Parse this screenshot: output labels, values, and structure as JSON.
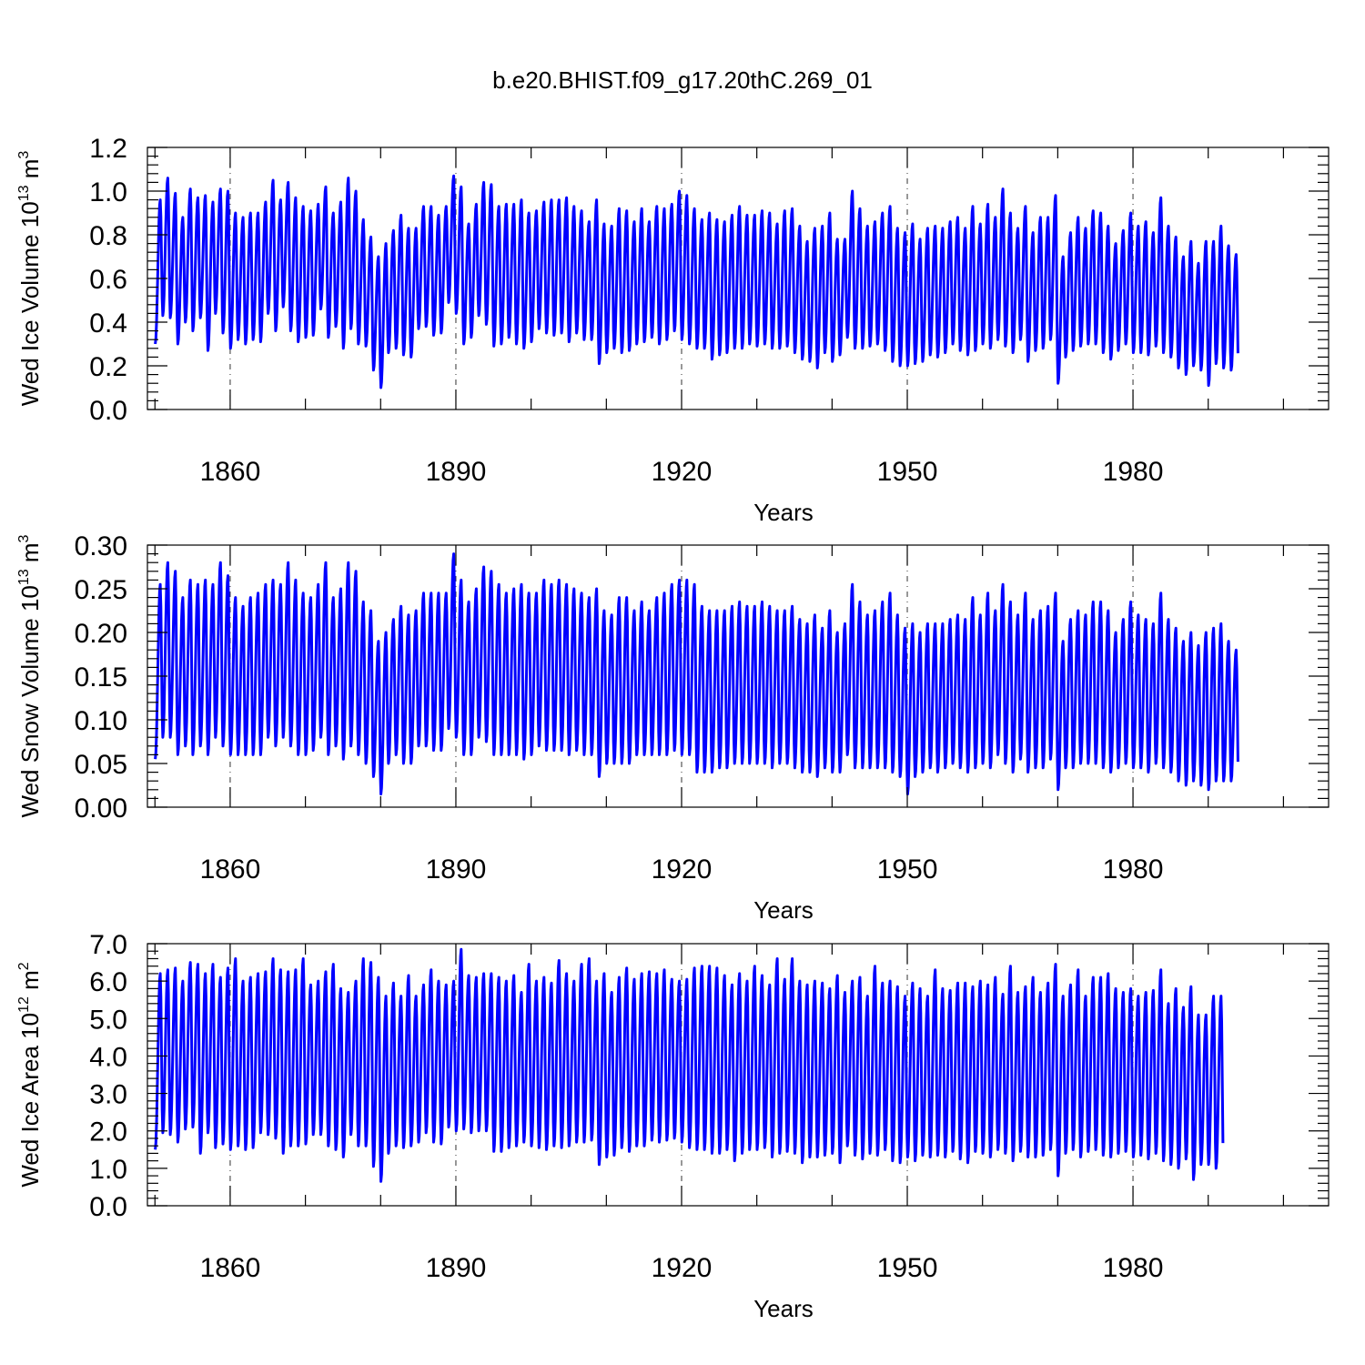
{
  "title": "b.e20.BHIST.f09_g17.20thC.269_01",
  "colors": {
    "series": "#0000ff",
    "axes": "#000000",
    "background": "#ffffff"
  },
  "chart_data": [
    {
      "type": "line",
      "ylabel": "Wed Ice Volume 10",
      "ylabel_sup": "13",
      "ylabel_unit": " m",
      "ylabel_unit_sup": "3",
      "xlabel": "Years",
      "xlim": [
        1849,
        2006
      ],
      "ylim": [
        0,
        1.2
      ],
      "x_ticks": [
        1860,
        1890,
        1920,
        1950,
        1980
      ],
      "y_ticks": [
        "0.0",
        "0.2",
        "0.4",
        "0.6",
        "0.8",
        "1.0",
        "1.2"
      ],
      "grid": "vertical dashed at major x ticks",
      "series": [
        {
          "start_year": 1850,
          "annual_max": [
            0.96,
            1.06,
            0.99,
            0.88,
            1.01,
            0.97,
            0.98,
            0.95,
            1.01,
            1.0,
            0.9,
            0.88,
            0.9,
            0.9,
            0.95,
            1.05,
            0.96,
            1.04,
            0.97,
            0.93,
            0.91,
            0.94,
            1.02,
            0.9,
            0.95,
            1.06,
            1.0,
            0.87,
            0.79,
            0.7,
            0.76,
            0.82,
            0.89,
            0.83,
            0.83,
            0.93,
            0.93,
            0.89,
            0.93,
            1.07,
            1.02,
            0.85,
            0.94,
            1.04,
            1.03,
            0.93,
            0.94,
            0.94,
            0.96,
            0.9,
            0.91,
            0.95,
            0.96,
            0.96,
            0.97,
            0.93,
            0.91,
            0.86,
            0.96,
            0.85,
            0.84,
            0.92,
            0.91,
            0.86,
            0.92,
            0.86,
            0.93,
            0.92,
            0.94,
            1.0,
            0.98,
            0.92,
            0.87,
            0.9,
            0.87,
            0.86,
            0.89,
            0.93,
            0.89,
            0.89,
            0.91,
            0.9,
            0.85,
            0.91,
            0.92,
            0.84,
            0.77,
            0.83,
            0.84,
            0.9,
            0.78,
            0.78,
            1.0,
            0.92,
            0.84,
            0.86,
            0.9,
            0.93,
            0.83,
            0.81,
            0.85,
            0.78,
            0.83,
            0.84,
            0.83,
            0.86,
            0.88,
            0.83,
            0.93,
            0.85,
            0.94,
            0.88,
            1.01,
            0.9,
            0.83,
            0.93,
            0.81,
            0.88,
            0.88,
            0.98,
            0.7,
            0.81,
            0.88,
            0.83,
            0.91,
            0.9,
            0.84,
            0.76,
            0.82,
            0.9,
            0.84,
            0.86,
            0.81,
            0.97,
            0.84,
            0.79,
            0.7,
            0.77,
            0.67,
            0.77,
            0.77,
            0.84,
            0.75,
            0.71
          ],
          "annual_min": [
            0.3,
            0.43,
            0.42,
            0.3,
            0.4,
            0.36,
            0.42,
            0.27,
            0.44,
            0.35,
            0.28,
            0.32,
            0.3,
            0.32,
            0.31,
            0.44,
            0.36,
            0.47,
            0.36,
            0.31,
            0.33,
            0.34,
            0.46,
            0.33,
            0.38,
            0.28,
            0.37,
            0.3,
            0.29,
            0.18,
            0.1,
            0.26,
            0.28,
            0.25,
            0.24,
            0.37,
            0.38,
            0.34,
            0.35,
            0.49,
            0.44,
            0.3,
            0.33,
            0.43,
            0.39,
            0.29,
            0.3,
            0.33,
            0.3,
            0.28,
            0.31,
            0.37,
            0.35,
            0.34,
            0.35,
            0.31,
            0.35,
            0.32,
            0.32,
            0.21,
            0.26,
            0.28,
            0.26,
            0.27,
            0.3,
            0.31,
            0.33,
            0.3,
            0.32,
            0.36,
            0.32,
            0.3,
            0.28,
            0.28,
            0.23,
            0.25,
            0.26,
            0.28,
            0.28,
            0.3,
            0.29,
            0.3,
            0.28,
            0.28,
            0.29,
            0.26,
            0.23,
            0.22,
            0.19,
            0.26,
            0.22,
            0.25,
            0.33,
            0.28,
            0.28,
            0.29,
            0.3,
            0.27,
            0.22,
            0.2,
            0.2,
            0.21,
            0.22,
            0.25,
            0.24,
            0.26,
            0.3,
            0.27,
            0.25,
            0.27,
            0.3,
            0.28,
            0.32,
            0.29,
            0.26,
            0.32,
            0.22,
            0.27,
            0.28,
            0.32,
            0.12,
            0.24,
            0.27,
            0.29,
            0.3,
            0.3,
            0.26,
            0.23,
            0.27,
            0.3,
            0.26,
            0.26,
            0.25,
            0.29,
            0.26,
            0.24,
            0.19,
            0.16,
            0.2,
            0.18,
            0.11,
            0.21,
            0.19,
            0.18
          ]
        }
      ]
    },
    {
      "type": "line",
      "ylabel": "Wed Snow Volume 10",
      "ylabel_sup": "13",
      "ylabel_unit": " m",
      "ylabel_unit_sup": "3",
      "xlabel": "Years",
      "xlim": [
        1849,
        2006
      ],
      "ylim": [
        0,
        0.3
      ],
      "x_ticks": [
        1860,
        1890,
        1920,
        1950,
        1980
      ],
      "y_ticks": [
        "0.00",
        "0.05",
        "0.10",
        "0.15",
        "0.20",
        "0.25",
        "0.30"
      ],
      "grid": "vertical dashed at major x ticks",
      "series": [
        {
          "start_year": 1850,
          "annual_max": [
            0.255,
            0.28,
            0.27,
            0.24,
            0.26,
            0.255,
            0.26,
            0.255,
            0.28,
            0.265,
            0.24,
            0.23,
            0.24,
            0.245,
            0.255,
            0.26,
            0.255,
            0.28,
            0.26,
            0.245,
            0.24,
            0.255,
            0.28,
            0.24,
            0.25,
            0.28,
            0.27,
            0.235,
            0.225,
            0.19,
            0.2,
            0.215,
            0.23,
            0.22,
            0.225,
            0.245,
            0.245,
            0.245,
            0.245,
            0.29,
            0.26,
            0.235,
            0.25,
            0.275,
            0.27,
            0.255,
            0.245,
            0.25,
            0.255,
            0.245,
            0.245,
            0.26,
            0.255,
            0.26,
            0.255,
            0.25,
            0.245,
            0.24,
            0.25,
            0.225,
            0.22,
            0.24,
            0.24,
            0.225,
            0.235,
            0.225,
            0.24,
            0.245,
            0.255,
            0.26,
            0.26,
            0.255,
            0.23,
            0.225,
            0.225,
            0.225,
            0.23,
            0.235,
            0.23,
            0.23,
            0.235,
            0.23,
            0.225,
            0.225,
            0.23,
            0.215,
            0.21,
            0.22,
            0.205,
            0.225,
            0.2,
            0.21,
            0.255,
            0.235,
            0.22,
            0.225,
            0.235,
            0.245,
            0.22,
            0.205,
            0.21,
            0.2,
            0.21,
            0.21,
            0.21,
            0.215,
            0.22,
            0.215,
            0.24,
            0.22,
            0.245,
            0.225,
            0.255,
            0.235,
            0.22,
            0.245,
            0.215,
            0.225,
            0.23,
            0.245,
            0.19,
            0.215,
            0.225,
            0.22,
            0.235,
            0.235,
            0.225,
            0.2,
            0.215,
            0.235,
            0.22,
            0.215,
            0.21,
            0.245,
            0.215,
            0.205,
            0.19,
            0.2,
            0.185,
            0.2,
            0.205,
            0.21,
            0.19,
            0.18
          ],
          "annual_min": [
            0.055,
            0.08,
            0.08,
            0.06,
            0.07,
            0.06,
            0.07,
            0.06,
            0.08,
            0.07,
            0.06,
            0.06,
            0.06,
            0.06,
            0.06,
            0.08,
            0.07,
            0.08,
            0.07,
            0.06,
            0.06,
            0.065,
            0.08,
            0.06,
            0.07,
            0.055,
            0.07,
            0.06,
            0.05,
            0.035,
            0.015,
            0.05,
            0.06,
            0.05,
            0.05,
            0.07,
            0.07,
            0.065,
            0.065,
            0.09,
            0.08,
            0.06,
            0.06,
            0.08,
            0.075,
            0.06,
            0.06,
            0.06,
            0.06,
            0.055,
            0.06,
            0.07,
            0.065,
            0.065,
            0.065,
            0.06,
            0.065,
            0.06,
            0.06,
            0.035,
            0.05,
            0.05,
            0.05,
            0.05,
            0.06,
            0.06,
            0.06,
            0.06,
            0.06,
            0.065,
            0.06,
            0.06,
            0.04,
            0.04,
            0.04,
            0.045,
            0.045,
            0.05,
            0.05,
            0.05,
            0.05,
            0.05,
            0.045,
            0.05,
            0.05,
            0.045,
            0.04,
            0.04,
            0.035,
            0.045,
            0.04,
            0.04,
            0.06,
            0.045,
            0.045,
            0.045,
            0.045,
            0.045,
            0.04,
            0.035,
            0.015,
            0.035,
            0.04,
            0.045,
            0.04,
            0.045,
            0.05,
            0.045,
            0.04,
            0.045,
            0.05,
            0.045,
            0.06,
            0.05,
            0.04,
            0.055,
            0.04,
            0.045,
            0.045,
            0.055,
            0.02,
            0.045,
            0.045,
            0.05,
            0.05,
            0.05,
            0.045,
            0.04,
            0.045,
            0.05,
            0.045,
            0.045,
            0.04,
            0.05,
            0.045,
            0.04,
            0.03,
            0.025,
            0.03,
            0.025,
            0.02,
            0.03,
            0.03,
            0.03
          ]
        }
      ]
    },
    {
      "type": "line",
      "ylabel": "Wed Ice Area 10",
      "ylabel_sup": "12",
      "ylabel_unit": " m",
      "ylabel_unit_sup": "2",
      "xlabel": "Years",
      "xlim": [
        1849,
        2006
      ],
      "ylim": [
        0,
        7.0
      ],
      "x_ticks": [
        1860,
        1890,
        1920,
        1950,
        1980
      ],
      "y_ticks": [
        "0.0",
        "1.0",
        "2.0",
        "3.0",
        "4.0",
        "5.0",
        "6.0",
        "7.0"
      ],
      "grid": "vertical dashed at major x ticks",
      "series": [
        {
          "start_year": 1850,
          "annual_max": [
            6.2,
            6.3,
            6.35,
            6.0,
            6.5,
            6.45,
            6.2,
            6.45,
            6.1,
            6.35,
            6.6,
            6.0,
            6.1,
            6.2,
            6.25,
            6.6,
            6.3,
            6.25,
            6.3,
            6.6,
            5.9,
            6.0,
            6.25,
            6.45,
            5.8,
            5.7,
            6.0,
            6.6,
            6.5,
            6.1,
            5.6,
            5.95,
            5.6,
            6.15,
            5.6,
            5.9,
            6.3,
            6.0,
            5.9,
            6.0,
            6.85,
            6.15,
            6.1,
            6.2,
            6.2,
            6.1,
            6.0,
            6.15,
            5.7,
            6.45,
            6.0,
            6.1,
            5.95,
            6.55,
            6.2,
            6.0,
            6.45,
            6.6,
            6.0,
            6.2,
            5.7,
            6.1,
            6.35,
            6.05,
            6.2,
            6.25,
            6.2,
            6.3,
            6.05,
            6.0,
            6.05,
            6.35,
            6.4,
            6.4,
            6.35,
            6.15,
            5.9,
            6.2,
            6.0,
            6.4,
            6.15,
            5.9,
            6.6,
            6.05,
            6.6,
            6.0,
            5.9,
            6.0,
            5.95,
            5.8,
            6.15,
            5.7,
            6.0,
            6.1,
            5.6,
            6.4,
            5.95,
            6.0,
            5.85,
            5.6,
            5.95,
            5.8,
            5.6,
            6.3,
            5.8,
            5.75,
            5.95,
            5.95,
            5.85,
            6.0,
            5.9,
            6.1,
            5.65,
            6.4,
            5.7,
            5.85,
            6.1,
            5.7,
            5.95,
            6.45,
            5.6,
            5.9,
            6.3,
            5.6,
            6.1,
            6.1,
            6.2,
            5.8,
            5.7,
            5.8,
            5.6,
            5.7,
            5.75,
            6.3,
            5.4,
            5.8,
            5.3,
            5.85,
            5.1,
            5.1,
            5.6,
            5.6
          ],
          "annual_min": [
            1.5,
            1.95,
            1.9,
            1.7,
            2.05,
            2.1,
            1.4,
            1.95,
            1.55,
            1.65,
            1.5,
            1.6,
            1.5,
            1.55,
            1.95,
            1.9,
            1.8,
            1.4,
            1.6,
            1.6,
            1.65,
            1.9,
            1.9,
            1.6,
            1.5,
            1.3,
            1.9,
            1.6,
            1.6,
            1.05,
            0.65,
            1.4,
            1.6,
            1.55,
            1.6,
            1.7,
            1.95,
            1.7,
            1.65,
            2.1,
            2.0,
            2.05,
            1.95,
            2.0,
            2.0,
            1.45,
            1.45,
            1.55,
            1.6,
            1.7,
            1.6,
            1.55,
            1.5,
            1.6,
            1.55,
            1.6,
            1.7,
            1.7,
            1.75,
            1.1,
            1.3,
            1.35,
            1.55,
            1.45,
            1.6,
            1.6,
            1.75,
            1.7,
            1.75,
            1.8,
            1.7,
            1.55,
            1.5,
            1.5,
            1.4,
            1.4,
            1.5,
            1.2,
            1.4,
            1.5,
            1.5,
            1.55,
            1.3,
            1.4,
            1.45,
            1.4,
            1.15,
            1.3,
            1.3,
            1.35,
            1.4,
            1.15,
            1.6,
            1.35,
            1.25,
            1.4,
            1.35,
            1.5,
            1.2,
            1.15,
            1.3,
            1.2,
            1.35,
            1.3,
            1.35,
            1.3,
            1.45,
            1.25,
            1.15,
            1.45,
            1.4,
            1.3,
            1.5,
            1.4,
            1.2,
            1.45,
            1.3,
            1.3,
            1.35,
            1.5,
            0.8,
            1.4,
            1.5,
            1.3,
            1.45,
            1.5,
            1.35,
            1.3,
            1.4,
            1.45,
            1.3,
            1.35,
            1.25,
            1.4,
            1.2,
            1.1,
            1.0,
            1.25,
            0.7,
            1.1,
            1.1,
            1.0
          ]
        }
      ]
    }
  ]
}
